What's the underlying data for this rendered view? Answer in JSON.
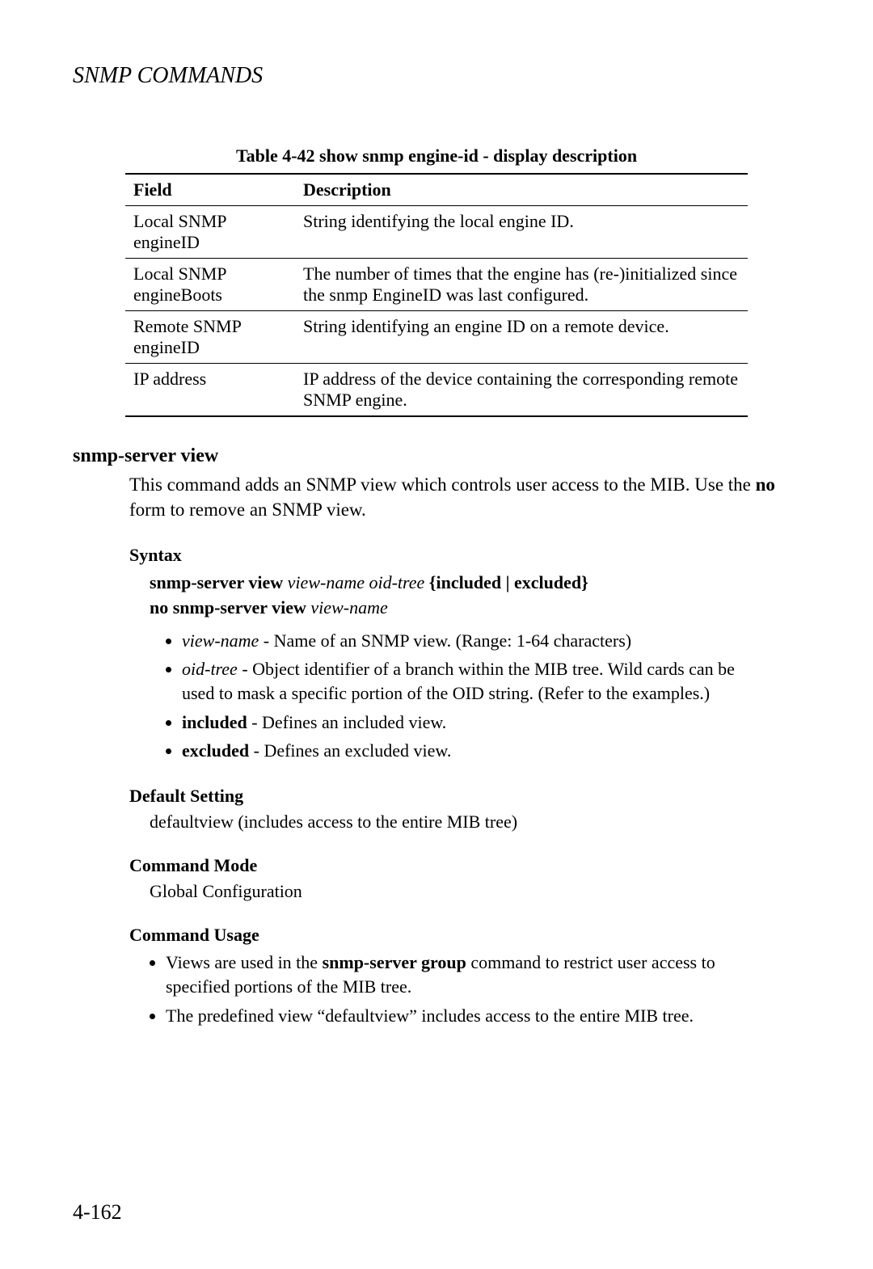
{
  "header": {
    "title_first": "SNMP C",
    "title_rest": "OMMANDS"
  },
  "table": {
    "caption": "Table 4-42   show snmp engine-id - display description",
    "columns": [
      "Field",
      "Description"
    ],
    "rows": [
      {
        "field": "Local SNMP engineID",
        "desc": "String identifying the local engine ID."
      },
      {
        "field": "Local SNMP engineBoots",
        "desc": "The number of times that the engine has (re-)initialized since the snmp EngineID was last configured."
      },
      {
        "field": "Remote SNMP engineID",
        "desc": "String identifying an engine ID on a remote device."
      },
      {
        "field": "IP address",
        "desc": "IP address of the device containing the corresponding remote SNMP engine."
      }
    ]
  },
  "section": {
    "heading": "snmp-server view",
    "intro_1": "This command adds an SNMP view which controls user access to the MIB. Use the ",
    "intro_no": "no",
    "intro_2": " form to remove an SNMP view.",
    "syntax_label": "Syntax",
    "syntax_cmd_a": "snmp-server view",
    "syntax_cmd_a_args": " view-name oid-tree",
    "syntax_cmd_a_tail": " {included | excluded}",
    "syntax_cmd_b": "no snmp-server view",
    "syntax_cmd_b_args": " view-name",
    "params": {
      "p1_term": "view-name",
      "p1_desc": " - Name of an SNMP view. (Range: 1-64 characters)",
      "p2_term": "oid-tree",
      "p2_desc": " - Object identifier of a branch within the MIB tree. Wild cards can be used to mask a specific portion of the OID string. (Refer to the examples.)",
      "p3_term": "included",
      "p3_desc": " - Defines an included view.",
      "p4_term": "excluded",
      "p4_desc": " - Defines an excluded view."
    },
    "default_label": "Default Setting",
    "default_text": "defaultview (includes access to the entire MIB tree)",
    "mode_label": "Command Mode",
    "mode_text": "Global Configuration",
    "usage_label": "Command Usage",
    "usage": {
      "u1_a": "Views are used in the ",
      "u1_b": "snmp-server group",
      "u1_c": " command to restrict user access to specified portions of the MIB tree.",
      "u2": "The predefined view “defaultview” includes access to the entire MIB tree."
    }
  },
  "page_number": "4-162"
}
